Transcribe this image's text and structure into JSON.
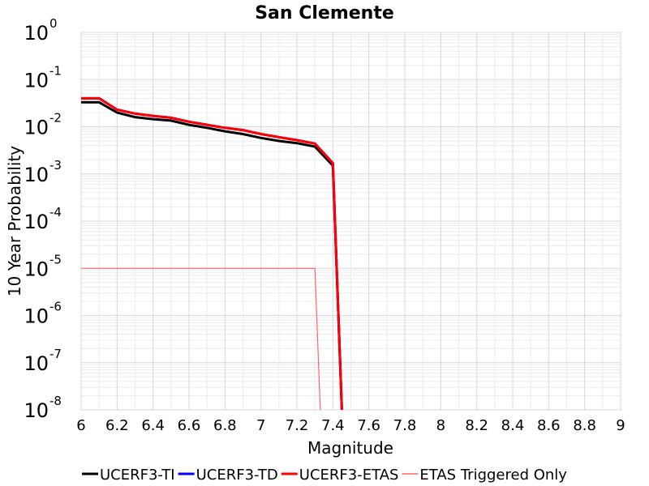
{
  "chart_data": {
    "type": "line",
    "title": "San Clemente",
    "xlabel": "Magnitude",
    "ylabel": "10 Year Probability",
    "xlim": [
      6,
      9
    ],
    "ylim": [
      1e-08,
      1
    ],
    "yscale": "log",
    "grid": true,
    "legend_position": "bottom",
    "x_ticks": [
      "6",
      "6.2",
      "6.4",
      "6.6",
      "6.8",
      "7",
      "7.2",
      "7.4",
      "7.6",
      "7.8",
      "8",
      "8.2",
      "8.4",
      "8.6",
      "8.8",
      "9"
    ],
    "y_ticks": [
      {
        "base": "10",
        "exp": "0"
      },
      {
        "base": "10",
        "exp": "-1"
      },
      {
        "base": "10",
        "exp": "-2"
      },
      {
        "base": "10",
        "exp": "-3"
      },
      {
        "base": "10",
        "exp": "-4"
      },
      {
        "base": "10",
        "exp": "-5"
      },
      {
        "base": "10",
        "exp": "-6"
      },
      {
        "base": "10",
        "exp": "-7"
      },
      {
        "base": "10",
        "exp": "-8"
      }
    ],
    "series": [
      {
        "name": "UCERF3-TI",
        "color": "#000000",
        "width": 3,
        "x": [
          6.0,
          6.1,
          6.2,
          6.3,
          6.4,
          6.5,
          6.6,
          6.7,
          6.8,
          6.9,
          7.0,
          7.1,
          7.2,
          7.3,
          7.4,
          7.45
        ],
        "y": [
          0.033,
          0.033,
          0.02,
          0.016,
          0.0145,
          0.0135,
          0.011,
          0.0095,
          0.008,
          0.007,
          0.0058,
          0.005,
          0.0045,
          0.0038,
          0.0015,
          1e-08
        ]
      },
      {
        "name": "UCERF3-TD",
        "color": "#0000ff",
        "width": 3,
        "x": [
          6.0,
          6.1,
          6.2,
          6.3,
          6.4,
          6.5,
          6.6,
          6.7,
          6.8,
          6.9,
          7.0,
          7.1,
          7.2,
          7.3,
          7.4,
          7.45
        ],
        "y": [
          0.04,
          0.04,
          0.023,
          0.019,
          0.017,
          0.0155,
          0.0128,
          0.011,
          0.0095,
          0.0085,
          0.007,
          0.006,
          0.0052,
          0.0044,
          0.0017,
          1e-08
        ]
      },
      {
        "name": "UCERF3-ETAS",
        "color": "#ff0000",
        "width": 3,
        "x": [
          6.0,
          6.1,
          6.2,
          6.3,
          6.4,
          6.5,
          6.6,
          6.7,
          6.8,
          6.9,
          7.0,
          7.1,
          7.2,
          7.3,
          7.4,
          7.45
        ],
        "y": [
          0.04,
          0.04,
          0.023,
          0.019,
          0.017,
          0.0155,
          0.0128,
          0.011,
          0.0095,
          0.0085,
          0.007,
          0.006,
          0.0052,
          0.0044,
          0.0017,
          1e-08
        ]
      },
      {
        "name": "ETAS Triggered Only",
        "color": "#ff6666",
        "width": 1.2,
        "x": [
          6.0,
          7.3,
          7.33
        ],
        "y": [
          1e-05,
          1e-05,
          1e-08
        ]
      }
    ]
  }
}
